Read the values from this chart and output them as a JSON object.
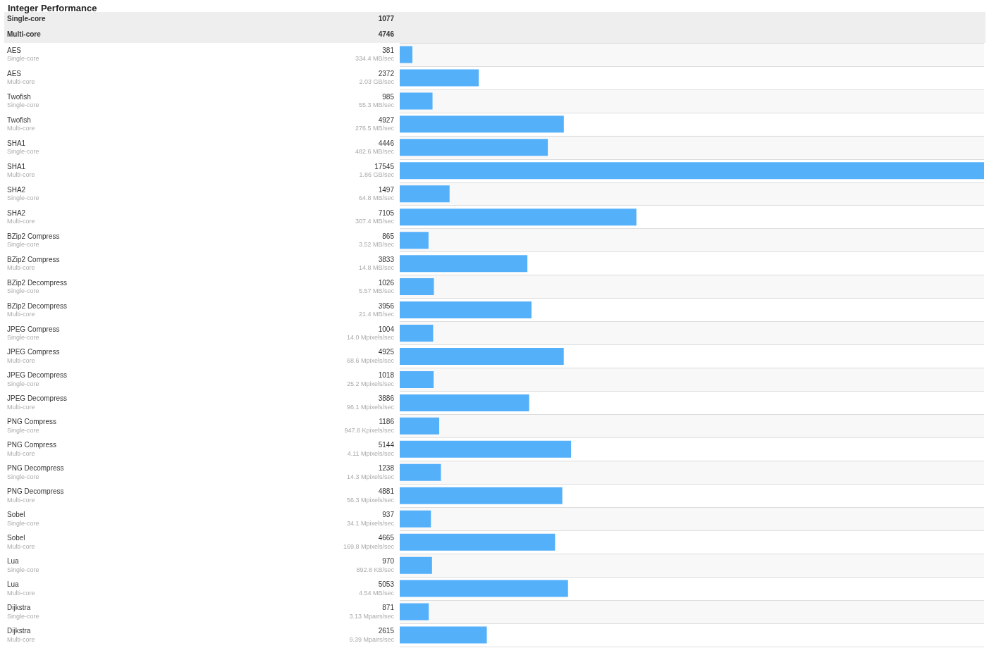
{
  "chart_data": {
    "type": "bar",
    "orientation": "horizontal",
    "title": "Integer Performance",
    "annotations": [
      "Single-core",
      "1077",
      "Multi-core",
      "4746",
      "334.4 MB/sec",
      "2.03 GB/sec",
      "55.3 MB/sec",
      "276.5 MB/sec",
      "482.6 MB/sec",
      "1.86 GB/sec",
      "64.8 MB/sec",
      "307.4 MB/sec",
      "3.52 MB/sec",
      "14.8 MB/sec",
      "5.57 MB/sec",
      "21.4 MB/sec",
      "14.0 Mpixels/sec",
      "68.6 Mpixels/sec",
      "25.2 Mpixels/sec",
      "96.1 Mpixels/sec",
      "947.8 Kpixels/sec",
      "4.11 Mpixels/sec",
      "14.3 Mpixels/sec",
      "56.3 Mpixels/sec",
      "34.1 Mpixels/sec",
      "169.8 Mpixels/sec",
      "892.8 KB/sec",
      "4.54 MB/sec",
      "3.13 Mpairs/sec",
      "9.39 Mpairs/sec"
    ],
    "categories": [
      "AES\nSingle-core",
      "AES\nMulti-core",
      "Twofish\nSingle-core",
      "Twofish\nMulti-core",
      "SHA1\nSingle-core",
      "SHA1\nMulti-core",
      "SHA2\nSingle-core",
      "SHA2\nMulti-core",
      "BZip2 Compress\nSingle-core",
      "BZip2 Compress\nMulti-core",
      "BZip2 Decompress\nSingle-core",
      "BZip2 Decompress\nMulti-core",
      "JPEG Compress\nSingle-core",
      "JPEG Compress\nMulti-core",
      "JPEG Decompress\nSingle-core",
      "JPEG Decompress\nMulti-core",
      "PNG Compress\nSingle-core",
      "PNG Compress\nMulti-core",
      "PNG Decompress\nSingle-core",
      "PNG Decompress\nMulti-core",
      "Sobel\nSingle-core",
      "Sobel\nMulti-core",
      "Lua\nSingle-core",
      "Lua\nMulti-core",
      "Dijkstra\nSingle-core",
      "Dijkstra\nMulti-core"
    ],
    "values": [
      381,
      2372,
      985,
      4927,
      4446,
      17545,
      1497,
      7105,
      865,
      3833,
      1026,
      3956,
      1004,
      4925,
      1018,
      3886,
      1186,
      5144,
      1238,
      4881,
      937,
      4665,
      970,
      5053,
      871,
      2615
    ],
    "data_labels": true,
    "color": "#55b0fa",
    "grid": "y"
  }
}
